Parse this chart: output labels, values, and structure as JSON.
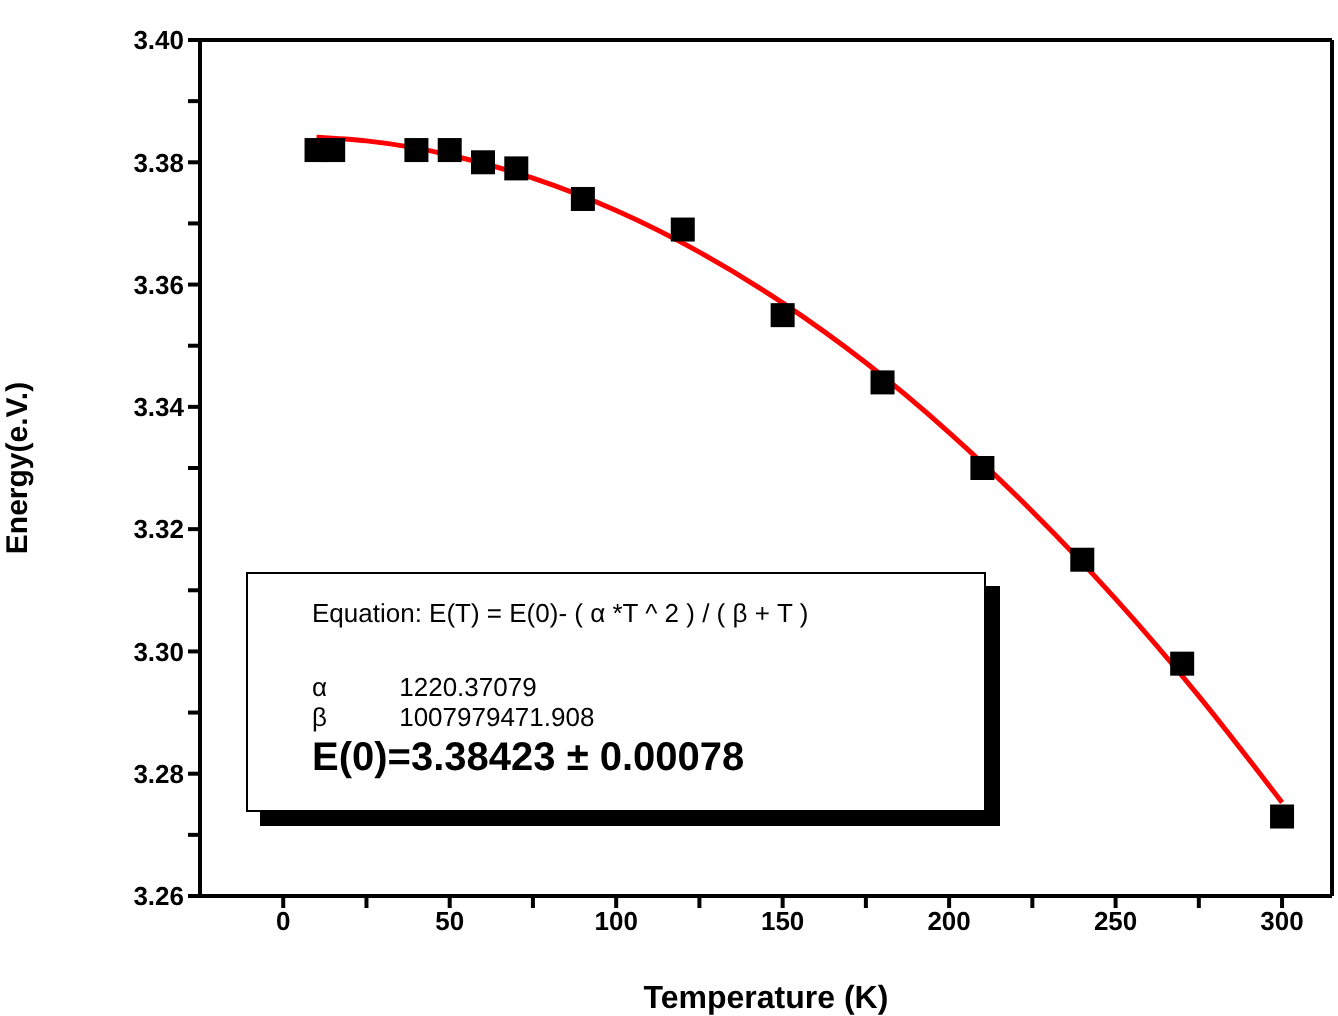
{
  "chart_data": {
    "type": "scatter",
    "xlabel": "Temperature (K)",
    "ylabel": "Energy(e.V.)",
    "xlim": [
      -25,
      315
    ],
    "ylim": [
      3.26,
      3.4
    ],
    "xticks": [
      0,
      {
        "value": 25,
        "label": null
      },
      50,
      {
        "value": 75,
        "label": null
      },
      100,
      {
        "value": 125,
        "label": null
      },
      150,
      {
        "value": 175,
        "label": null
      },
      200,
      {
        "value": 225,
        "label": null
      },
      250,
      {
        "value": 275,
        "label": null
      },
      300
    ],
    "yticks": [
      3.26,
      {
        "value": 3.27,
        "label": null
      },
      3.28,
      {
        "value": 3.29,
        "label": null
      },
      {
        "value": 3.3,
        "label": "3.30"
      },
      {
        "value": 3.31,
        "label": null
      },
      3.32,
      {
        "value": 3.33,
        "label": null
      },
      3.34,
      {
        "value": 3.35,
        "label": null
      },
      3.36,
      {
        "value": 3.37,
        "label": null
      },
      3.38,
      {
        "value": 3.39,
        "label": null
      },
      {
        "value": 3.4,
        "label": "3.40"
      }
    ],
    "series": [
      {
        "color": "#000000",
        "marker": "square",
        "x": [
          10,
          15,
          40,
          50,
          60,
          70,
          90,
          120,
          150,
          180,
          210,
          240,
          270,
          300
        ],
        "values": [
          3.382,
          3.382,
          3.382,
          3.382,
          3.38,
          3.379,
          3.374,
          3.369,
          3.355,
          3.344,
          3.33,
          3.315,
          3.298,
          3.273
        ]
      },
      {
        "type": "line",
        "color": "#ff0000",
        "marker": "none",
        "line_style": "solid",
        "x": [
          10,
          25,
          50,
          75,
          100,
          125,
          150,
          175,
          200,
          225,
          250,
          275,
          300
        ],
        "values": [
          3.3841,
          3.3835,
          3.3812,
          3.3774,
          3.3721,
          3.3653,
          3.357,
          3.3472,
          3.3358,
          3.3229,
          3.3086,
          3.2927,
          3.2753
        ]
      }
    ],
    "annotations": [
      "Equation: E(T) = E(0)- ( α *T ^ 2 ) / ( β + T )",
      "α          1220.37079",
      "β          1007979471.908",
      "E(0)=3.38423 ± 0.00078"
    ]
  }
}
